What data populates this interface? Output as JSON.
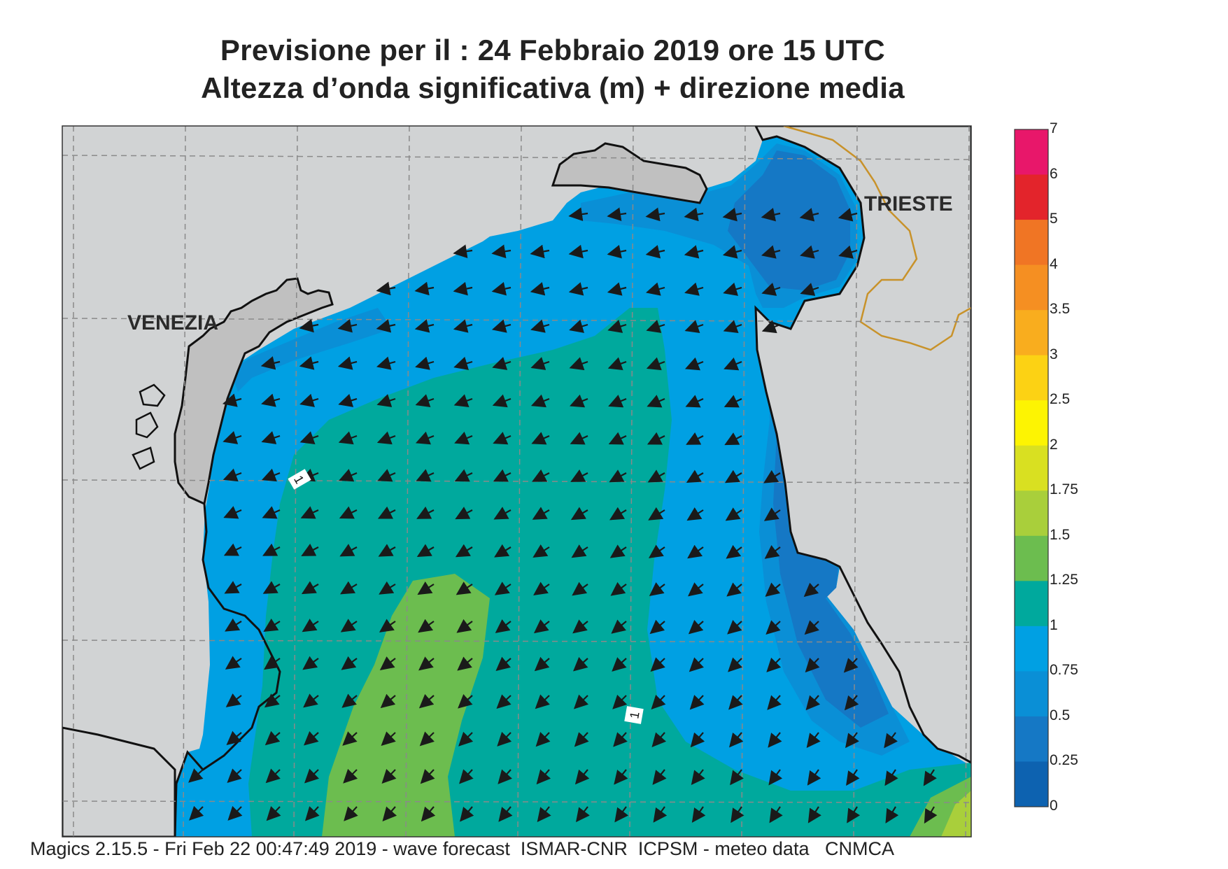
{
  "title": {
    "line1": "Previsione per il  :  24  Febbraio 2019   ore 15 UTC",
    "line2": "Altezza d’onda significativa (m) + direzione media"
  },
  "places": {
    "venezia": "VENEZIA",
    "trieste": "TRIESTE"
  },
  "contour_labels": [
    "1",
    "1"
  ],
  "colorbar": {
    "unit": "m",
    "levels": [
      "7",
      "6",
      "5",
      "4",
      "3.5",
      "3",
      "2.5",
      "2",
      "1.75",
      "1.5",
      "1.25",
      "1",
      "0.75",
      "0.5",
      "0.25",
      "0"
    ],
    "colors": [
      "#e8176a",
      "#e3242b",
      "#f07524",
      "#f58f22",
      "#f9ad1e",
      "#fcd214",
      "#fdf402",
      "#d9e021",
      "#a9cf3b",
      "#6cbd4f",
      "#00a99d",
      "#00a0e3",
      "#0a8fd6",
      "#1578c5",
      "#0d62b0"
    ]
  },
  "footer": "Magics 2.15.5 - Fri Feb 22 00:47:49 2019 - wave forecast  ISMAR-CNR  ICPSM - meteo data   CNMCA",
  "colors": {
    "land": "#d1d3d4",
    "lagoon": "#c0c0c0",
    "coast": "#111111",
    "border": "#c8922a",
    "grid": "#8a8a8a"
  }
}
